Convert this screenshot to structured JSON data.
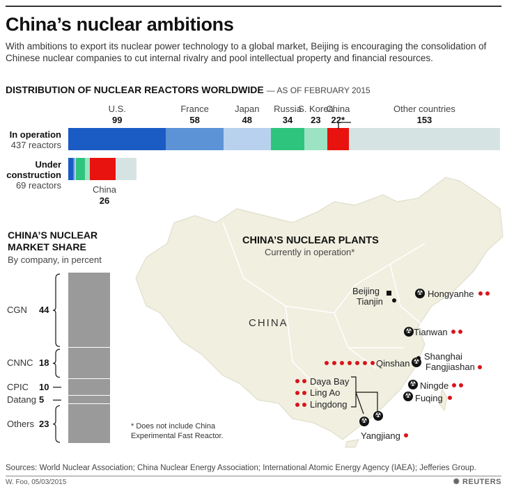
{
  "title": "China’s nuclear ambitions",
  "subtitle": "With ambitions to export its nuclear power technology to a global market, Beijing is encouraging the consolidation of Chinese nuclear companies to cut internal rivalry and pool intellectual property and financial resources.",
  "colors": {
    "us": "#1a5bc4",
    "france": "#5b93d6",
    "japan": "#b8d1ee",
    "russia": "#2fc47d",
    "skorea": "#9be3c3",
    "china": "#e8120e",
    "other": "#d6e3e3",
    "map_land": "#f0efe0",
    "map_border": "#ffffff",
    "share_bar": "#9a9a9a",
    "plant_dot": "#d8141a"
  },
  "chart_data": [
    {
      "type": "bar",
      "title": "DISTRIBUTION OF NUCLEAR REACTORS WORLDWIDE",
      "subtitle": "— AS OF FEBRUARY 2015",
      "stacked": true,
      "orientation": "horizontal",
      "categories": [
        "In operation",
        "Under construction"
      ],
      "category_counts": [
        "437 reactors",
        "69 reactors"
      ],
      "series": [
        {
          "name": "U.S.",
          "values": [
            99,
            5
          ],
          "label": "99"
        },
        {
          "name": "France",
          "values": [
            58,
            1
          ],
          "label": "58"
        },
        {
          "name": "Japan",
          "values": [
            48,
            2
          ],
          "label": "48"
        },
        {
          "name": "Russia",
          "values": [
            34,
            9
          ],
          "label": "34"
        },
        {
          "name": "S. Korea",
          "values": [
            23,
            5
          ],
          "label": "23"
        },
        {
          "name": "China",
          "values": [
            22,
            26
          ],
          "label": "22*"
        },
        {
          "name": "Other countries",
          "values": [
            153,
            21
          ],
          "label": "153"
        }
      ],
      "under_construction_label": {
        "name": "China",
        "value": "26"
      }
    },
    {
      "type": "bar",
      "title": "CHINA’S NUCLEAR MARKET SHARE",
      "subtitle": "By company, in percent",
      "stacked": true,
      "orientation": "vertical",
      "categories": [
        "CGN",
        "CNNC",
        "CPIC",
        "Datang",
        "Others"
      ],
      "values": [
        44,
        18,
        10,
        5,
        23
      ]
    }
  ],
  "map": {
    "title": "CHINA’S NUCLEAR PLANTS",
    "subtitle": "Currently in operation*",
    "country_label": "CHINA",
    "cities": [
      "Beijing",
      "Tianjin",
      "Shanghai"
    ],
    "plants": [
      {
        "name": "Hongyanhe",
        "reactors": 2
      },
      {
        "name": "Tianwan",
        "reactors": 2
      },
      {
        "name": "Qinshan",
        "reactors": 7
      },
      {
        "name": "Fangjiashan",
        "reactors": 1
      },
      {
        "name": "Daya Bay",
        "reactors": 2
      },
      {
        "name": "Ling Ao",
        "reactors": 2
      },
      {
        "name": "Lingdong",
        "reactors": 2
      },
      {
        "name": "Ningde",
        "reactors": 2
      },
      {
        "name": "Fuqing",
        "reactors": 1
      },
      {
        "name": "Yangjiang",
        "reactors": 1
      }
    ]
  },
  "footnote": "* Does not include China Experimental Fast Reactor.",
  "sources": "Sources: World Nuclear Association; China Nuclear Energy Association; International Atomic Energy Agency (IAEA); Jefferies Group.",
  "byline": "W. Foo, 05/03/2015",
  "logo": "REUTERS"
}
